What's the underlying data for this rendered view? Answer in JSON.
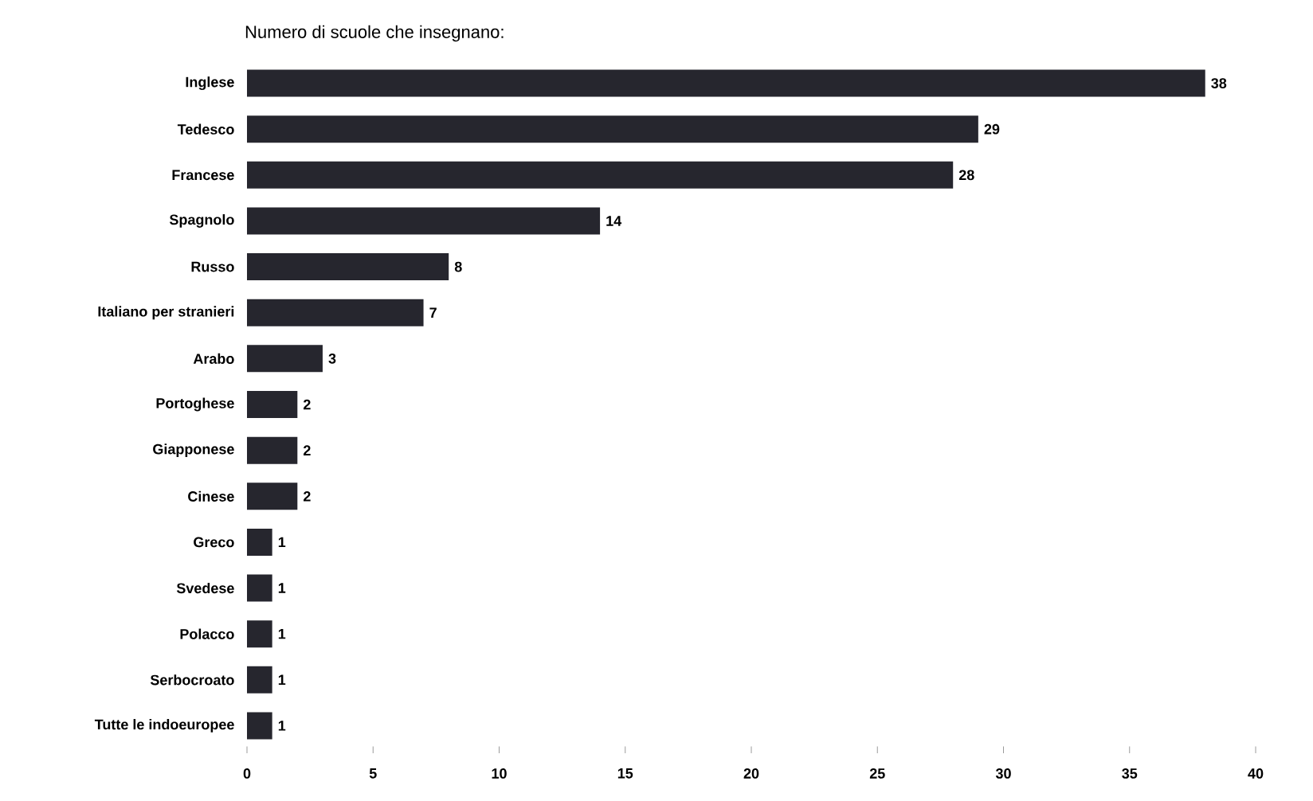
{
  "chart_data": {
    "type": "bar",
    "orientation": "horizontal",
    "title": "Numero di scuole che insegnano:",
    "categories": [
      "Inglese",
      "Tedesco",
      "Francese",
      "Spagnolo",
      "Russo",
      "Italiano per stranieri",
      "Arabo",
      "Portoghese",
      "Giapponese",
      "Cinese",
      "Greco",
      "Svedese",
      "Polacco",
      "Serbocroato",
      "Tutte le indoeuropee"
    ],
    "values": [
      38,
      29,
      28,
      14,
      8,
      7,
      3,
      2,
      2,
      2,
      1,
      1,
      1,
      1,
      1
    ],
    "color": "#26262e",
    "xlim": [
      0,
      40
    ],
    "xticks": [
      0,
      5,
      10,
      15,
      20,
      25,
      30,
      35,
      40
    ],
    "data_labels": true,
    "grid": false
  }
}
